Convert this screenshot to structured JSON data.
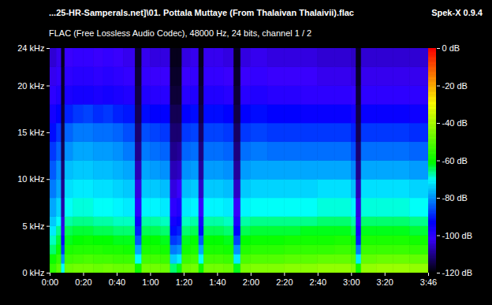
{
  "chart_data": {
    "type": "heatmap",
    "title": "...25-HR-Samperals.net]\\01. Pottala Muttaye (From Thalaivan Thalaivii).flac",
    "subtitle": "FLAC (Free Lossless Audio Codec), 48000 Hz, 24 bits, channel 1 / 2",
    "annotations": [
      "Spek-X 0.9.4"
    ],
    "xlim": [
      0,
      226
    ],
    "xticks": [
      {
        "value": 0,
        "label": "0:00"
      },
      {
        "value": 20,
        "label": "0:20"
      },
      {
        "value": 40,
        "label": "0:40"
      },
      {
        "value": 60,
        "label": "1:00"
      },
      {
        "value": 80,
        "label": "1:20"
      },
      {
        "value": 100,
        "label": "1:40"
      },
      {
        "value": 120,
        "label": "2:00"
      },
      {
        "value": 140,
        "label": "2:20"
      },
      {
        "value": 160,
        "label": "2:40"
      },
      {
        "value": 180,
        "label": "3:00"
      },
      {
        "value": 200,
        "label": "3:20"
      },
      {
        "value": 226,
        "label": "3:46"
      }
    ],
    "ylim": [
      0,
      24
    ],
    "yticks": [
      {
        "value": 0,
        "label": "0 kHz"
      },
      {
        "value": 5,
        "label": "5 kHz"
      },
      {
        "value": 10,
        "label": "10 kHz"
      },
      {
        "value": 15,
        "label": "15 kHz"
      },
      {
        "value": 20,
        "label": "20 kHz"
      },
      {
        "value": 24,
        "label": "24 kHz"
      }
    ],
    "time_edges": [
      0,
      4,
      7,
      9,
      14,
      20,
      26,
      32,
      38,
      44,
      51,
      55,
      60,
      66,
      72,
      76,
      79,
      84,
      89,
      92,
      98,
      104,
      110,
      114,
      120,
      130,
      140,
      150,
      160,
      170,
      180,
      183,
      186,
      195,
      205,
      215,
      226
    ],
    "freq_edges": [
      0,
      1,
      2,
      3,
      4,
      5,
      6,
      8,
      10,
      12,
      14,
      16,
      18,
      20,
      22,
      24
    ],
    "db": [
      [
        -55,
        -60,
        -65,
        -68,
        -72,
        -75,
        -78,
        -82,
        -85,
        -88,
        -92,
        -96,
        -100,
        -103,
        -105
      ],
      [
        -50,
        -55,
        -60,
        -63,
        -66,
        -70,
        -74,
        -78,
        -80,
        -84,
        -88,
        -93,
        -98,
        -101,
        -103
      ],
      [
        -70,
        -80,
        -88,
        -95,
        -100,
        -104,
        -108,
        -110,
        -112,
        -114,
        -115,
        -116,
        -117,
        -117,
        -118
      ],
      [
        -48,
        -54,
        -58,
        -62,
        -64,
        -67,
        -70,
        -73,
        -76,
        -80,
        -84,
        -90,
        -97,
        -100,
        -102
      ],
      [
        -47,
        -53,
        -57,
        -61,
        -63,
        -66,
        -69,
        -72,
        -75,
        -78,
        -82,
        -88,
        -96,
        -99,
        -101
      ],
      [
        -47,
        -52,
        -57,
        -60,
        -63,
        -66,
        -69,
        -72,
        -75,
        -78,
        -82,
        -87,
        -96,
        -99,
        -101
      ],
      [
        -48,
        -53,
        -57,
        -61,
        -64,
        -67,
        -70,
        -73,
        -76,
        -79,
        -83,
        -89,
        -97,
        -100,
        -102
      ],
      [
        -47,
        -53,
        -58,
        -61,
        -64,
        -67,
        -70,
        -73,
        -76,
        -79,
        -83,
        -88,
        -96,
        -99,
        -101
      ],
      [
        -48,
        -54,
        -58,
        -62,
        -65,
        -68,
        -71,
        -74,
        -77,
        -80,
        -84,
        -90,
        -97,
        -100,
        -102
      ],
      [
        -48,
        -54,
        -59,
        -62,
        -65,
        -68,
        -72,
        -75,
        -78,
        -82,
        -86,
        -91,
        -98,
        -101,
        -103
      ],
      [
        -60,
        -70,
        -78,
        -85,
        -90,
        -95,
        -100,
        -104,
        -107,
        -110,
        -112,
        -114,
        -115,
        -116,
        -117
      ],
      [
        -47,
        -53,
        -58,
        -61,
        -64,
        -67,
        -71,
        -75,
        -78,
        -82,
        -86,
        -92,
        -98,
        -101,
        -103
      ],
      [
        -47,
        -53,
        -58,
        -61,
        -64,
        -67,
        -71,
        -75,
        -79,
        -83,
        -87,
        -93,
        -99,
        -102,
        -104
      ],
      [
        -48,
        -54,
        -59,
        -62,
        -65,
        -68,
        -72,
        -76,
        -80,
        -84,
        -88,
        -93,
        -99,
        -102,
        -104
      ],
      [
        -65,
        -75,
        -82,
        -88,
        -92,
        -96,
        -100,
        -104,
        -107,
        -110,
        -112,
        -114,
        -116,
        -117,
        -118
      ],
      [
        -62,
        -72,
        -80,
        -86,
        -90,
        -94,
        -98,
        -102,
        -106,
        -109,
        -112,
        -114,
        -116,
        -117,
        -118
      ],
      [
        -48,
        -54,
        -59,
        -62,
        -65,
        -68,
        -72,
        -76,
        -80,
        -84,
        -88,
        -93,
        -99,
        -102,
        -104
      ],
      [
        -47,
        -53,
        -58,
        -61,
        -64,
        -67,
        -71,
        -75,
        -79,
        -83,
        -87,
        -92,
        -98,
        -101,
        -103
      ],
      [
        -60,
        -70,
        -78,
        -85,
        -92,
        -97,
        -102,
        -106,
        -109,
        -111,
        -113,
        -115,
        -116,
        -117,
        -118
      ],
      [
        -47,
        -53,
        -58,
        -61,
        -64,
        -67,
        -71,
        -75,
        -79,
        -83,
        -87,
        -92,
        -98,
        -101,
        -103
      ],
      [
        -47,
        -53,
        -58,
        -61,
        -64,
        -67,
        -71,
        -75,
        -79,
        -83,
        -87,
        -92,
        -98,
        -101,
        -103
      ],
      [
        -48,
        -54,
        -59,
        -62,
        -65,
        -68,
        -72,
        -76,
        -80,
        -84,
        -88,
        -93,
        -99,
        -102,
        -104
      ],
      [
        -62,
        -72,
        -80,
        -87,
        -93,
        -98,
        -102,
        -106,
        -109,
        -111,
        -113,
        -115,
        -116,
        -117,
        -118
      ],
      [
        -46,
        -52,
        -57,
        -61,
        -64,
        -67,
        -71,
        -75,
        -79,
        -83,
        -88,
        -93,
        -99,
        -102,
        -104
      ],
      [
        -45,
        -51,
        -56,
        -60,
        -63,
        -66,
        -70,
        -74,
        -78,
        -82,
        -87,
        -92,
        -98,
        -101,
        -103
      ],
      [
        -45,
        -51,
        -56,
        -60,
        -63,
        -66,
        -70,
        -74,
        -78,
        -83,
        -88,
        -93,
        -99,
        -102,
        -104
      ],
      [
        -44,
        -50,
        -55,
        -59,
        -63,
        -66,
        -70,
        -74,
        -78,
        -83,
        -88,
        -93,
        -99,
        -102,
        -104
      ],
      [
        -44,
        -50,
        -55,
        -59,
        -62,
        -66,
        -70,
        -74,
        -78,
        -83,
        -88,
        -94,
        -100,
        -102,
        -104
      ],
      [
        -43,
        -49,
        -55,
        -59,
        -62,
        -65,
        -69,
        -73,
        -78,
        -83,
        -88,
        -94,
        -100,
        -103,
        -105
      ],
      [
        -43,
        -49,
        -54,
        -58,
        -62,
        -65,
        -69,
        -73,
        -78,
        -83,
        -88,
        -94,
        -100,
        -103,
        -105
      ],
      [
        -45,
        -51,
        -56,
        -60,
        -64,
        -67,
        -71,
        -76,
        -81,
        -86,
        -90,
        -96,
        -101,
        -104,
        -106
      ],
      [
        -60,
        -72,
        -82,
        -90,
        -96,
        -100,
        -104,
        -107,
        -110,
        -112,
        -114,
        -115,
        -116,
        -117,
        -118
      ],
      [
        -43,
        -49,
        -54,
        -58,
        -62,
        -65,
        -69,
        -73,
        -78,
        -83,
        -88,
        -94,
        -100,
        -103,
        -105
      ],
      [
        -42,
        -48,
        -54,
        -58,
        -62,
        -65,
        -69,
        -73,
        -78,
        -83,
        -88,
        -94,
        -100,
        -103,
        -105
      ],
      [
        -42,
        -48,
        -54,
        -58,
        -62,
        -65,
        -69,
        -73,
        -78,
        -83,
        -88,
        -94,
        -100,
        -103,
        -105
      ],
      [
        -43,
        -49,
        -55,
        -59,
        -63,
        -66,
        -70,
        -74,
        -79,
        -84,
        -89,
        -95,
        -100,
        -103,
        -105
      ]
    ],
    "colorbar": {
      "range": [
        -120,
        0
      ],
      "ticks": [
        {
          "value": 0,
          "label": "0 dB"
        },
        {
          "value": -20,
          "label": "-20 dB"
        },
        {
          "value": -40,
          "label": "-40 dB"
        },
        {
          "value": -60,
          "label": "-60 dB"
        },
        {
          "value": -80,
          "label": "-80 dB"
        },
        {
          "value": -100,
          "label": "-100 dB"
        },
        {
          "value": -120,
          "label": "-120 dB"
        }
      ]
    }
  }
}
